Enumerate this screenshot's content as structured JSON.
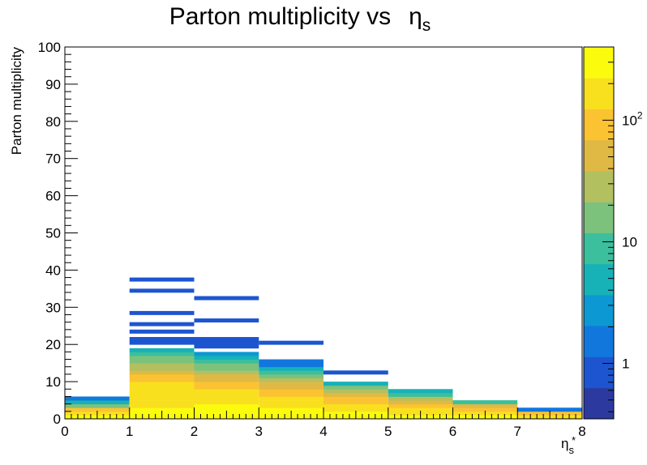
{
  "chart_data": {
    "type": "heatmap",
    "title": "Parton multiplicity vs",
    "title_symbol": "η",
    "title_symbol_sub": "s",
    "xlabel": "η",
    "xlabel_sub": "s",
    "xlabel_sup": "*",
    "ylabel": "Parton multiplicity",
    "xlim": [
      0,
      8
    ],
    "ylim": [
      0,
      100
    ],
    "x_ticks": [
      "0",
      "1",
      "2",
      "3",
      "4",
      "5",
      "6",
      "7",
      "8"
    ],
    "y_ticks": [
      "0",
      "10",
      "20",
      "30",
      "40",
      "50",
      "60",
      "70",
      "80",
      "90",
      "100"
    ],
    "x_bin_width": 1,
    "y_bin_width": 1,
    "z_scale": "log",
    "z_range": [
      0.35,
      400
    ],
    "colorbar_ticks": [
      {
        "label": "1",
        "value": 1
      },
      {
        "label": "10",
        "value": 10
      },
      {
        "label": "10",
        "sup": "2",
        "value": 100
      }
    ],
    "palette": [
      "#2c3aa0",
      "#1d55d0",
      "#1177dd",
      "#0c98d2",
      "#17b1b8",
      "#3cbf9c",
      "#7cc27d",
      "#b3c060",
      "#e0b944",
      "#fbc332",
      "#f9e01f",
      "#fbfb0e"
    ],
    "columns": [
      {
        "x": 0,
        "cells": [
          [
            0,
            250
          ],
          [
            1,
            180
          ],
          [
            2,
            80
          ],
          [
            3,
            20
          ],
          [
            4,
            6
          ],
          [
            5,
            2
          ]
        ]
      },
      {
        "x": 1,
        "cells": [
          [
            0,
            300
          ],
          [
            1,
            280
          ],
          [
            2,
            260
          ],
          [
            3,
            220
          ],
          [
            4,
            200
          ],
          [
            5,
            190
          ],
          [
            6,
            185
          ],
          [
            7,
            180
          ],
          [
            8,
            160
          ],
          [
            9,
            150
          ],
          [
            10,
            110
          ],
          [
            11,
            70
          ],
          [
            12,
            50
          ],
          [
            13,
            38
          ],
          [
            14,
            26
          ],
          [
            15,
            18
          ],
          [
            16,
            12
          ],
          [
            17,
            7
          ],
          [
            18,
            4
          ],
          [
            20,
            1
          ],
          [
            21,
            1
          ],
          [
            23,
            1
          ],
          [
            25,
            1
          ],
          [
            28,
            1
          ],
          [
            34,
            1
          ],
          [
            37,
            1
          ]
        ]
      },
      {
        "x": 2,
        "cells": [
          [
            0,
            320
          ],
          [
            1,
            300
          ],
          [
            2,
            270
          ],
          [
            3,
            230
          ],
          [
            4,
            200
          ],
          [
            5,
            180
          ],
          [
            6,
            160
          ],
          [
            7,
            130
          ],
          [
            8,
            110
          ],
          [
            9,
            90
          ],
          [
            10,
            65
          ],
          [
            11,
            45
          ],
          [
            12,
            32
          ],
          [
            13,
            20
          ],
          [
            14,
            13
          ],
          [
            15,
            8
          ],
          [
            16,
            5
          ],
          [
            17,
            3
          ],
          [
            19,
            1
          ],
          [
            20,
            1
          ],
          [
            21,
            1
          ],
          [
            26,
            1
          ],
          [
            32,
            1
          ]
        ]
      },
      {
        "x": 3,
        "cells": [
          [
            0,
            300
          ],
          [
            1,
            270
          ],
          [
            2,
            230
          ],
          [
            3,
            200
          ],
          [
            4,
            170
          ],
          [
            5,
            140
          ],
          [
            6,
            110
          ],
          [
            7,
            85
          ],
          [
            8,
            60
          ],
          [
            9,
            40
          ],
          [
            10,
            25
          ],
          [
            11,
            15
          ],
          [
            12,
            9
          ],
          [
            13,
            5
          ],
          [
            14,
            2
          ],
          [
            15,
            2
          ],
          [
            20,
            1
          ]
        ]
      },
      {
        "x": 4,
        "cells": [
          [
            0,
            300
          ],
          [
            1,
            260
          ],
          [
            2,
            210
          ],
          [
            3,
            170
          ],
          [
            4,
            120
          ],
          [
            5,
            80
          ],
          [
            6,
            50
          ],
          [
            7,
            28
          ],
          [
            8,
            15
          ],
          [
            9,
            5
          ],
          [
            12,
            1
          ]
        ]
      },
      {
        "x": 5,
        "cells": [
          [
            0,
            280
          ],
          [
            1,
            200
          ],
          [
            2,
            150
          ],
          [
            3,
            100
          ],
          [
            4,
            60
          ],
          [
            5,
            30
          ],
          [
            6,
            8
          ],
          [
            7,
            4
          ]
        ]
      },
      {
        "x": 6,
        "cells": [
          [
            0,
            260
          ],
          [
            1,
            170
          ],
          [
            2,
            100
          ],
          [
            3,
            45
          ],
          [
            4,
            9
          ]
        ]
      },
      {
        "x": 7,
        "cells": [
          [
            0,
            140
          ],
          [
            1,
            80
          ],
          [
            2,
            2
          ]
        ]
      }
    ]
  }
}
